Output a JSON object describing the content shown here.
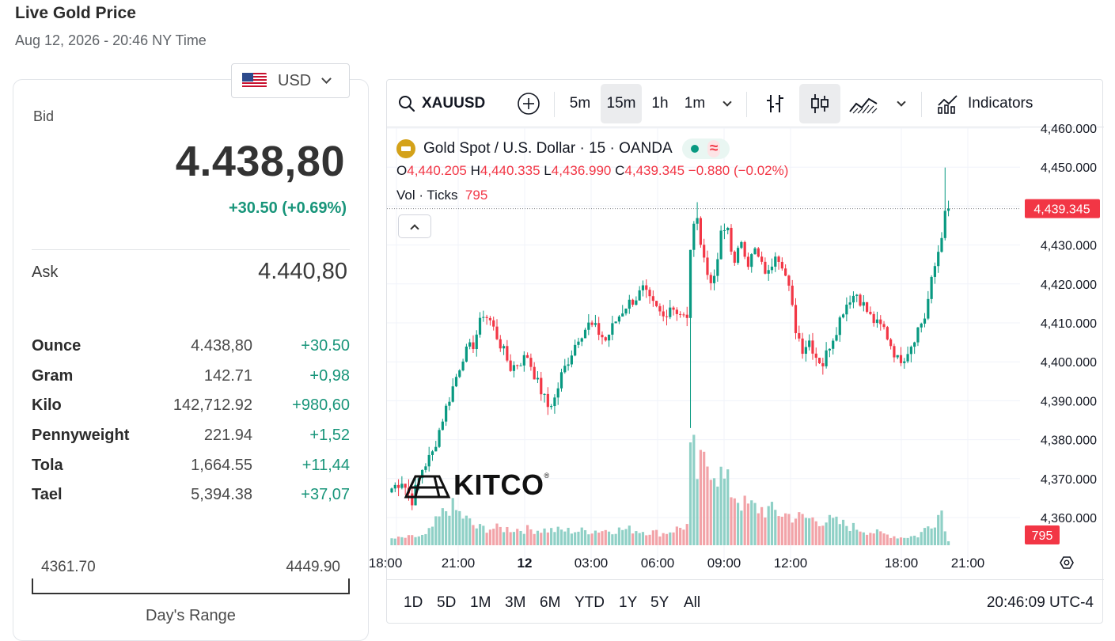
{
  "header": {
    "title": "Live Gold Price",
    "datetime": "Aug 12, 2026 - 20:46 NY Time"
  },
  "currency": {
    "selected": "USD",
    "flag_icon": "us-flag-icon"
  },
  "quote": {
    "bid_label": "Bid",
    "bid": "4.438,80",
    "change": "+30.50 (+0.69%)",
    "ask_label": "Ask",
    "ask": "4.440,80"
  },
  "units": [
    {
      "name": "Ounce",
      "price": "4.438,80",
      "change": "+30.50"
    },
    {
      "name": "Gram",
      "price": "142.71",
      "change": "+0,98"
    },
    {
      "name": "Kilo",
      "price": "142,712.92",
      "change": "+980,60"
    },
    {
      "name": "Pennyweight",
      "price": "221.94",
      "change": "+1,52"
    },
    {
      "name": "Tola",
      "price": "1,664.55",
      "change": "+11,44"
    },
    {
      "name": "Tael",
      "price": "5,394.38",
      "change": "+37,07"
    }
  ],
  "days_range": {
    "low": "4361.70",
    "high": "4449.90",
    "label": "Day's Range"
  },
  "toolbar": {
    "symbol": "XAUUSD",
    "intervals": [
      "5m",
      "15m",
      "1h",
      "1m"
    ],
    "active_interval": "15m",
    "indicators_label": "Indicators"
  },
  "legend": {
    "title": "Gold Spot",
    "slash": "/",
    "quote_name": "U.S. Dollar",
    "meta": "· 15 · OANDA",
    "o_label": "O",
    "o": "4,440.205",
    "h_label": "H",
    "h": "4,440.335",
    "l_label": "L",
    "l": "4,436.990",
    "c_label": "C",
    "c": "4,439.345",
    "change": "−0.880 (−0.02%)",
    "vol_label": "Vol · Ticks",
    "vol": "795"
  },
  "watermark": {
    "text": "KITCO",
    "reg": "®"
  },
  "bottom": {
    "ranges": [
      "1D",
      "5D",
      "1M",
      "3M",
      "6M",
      "YTD",
      "1Y",
      "5Y",
      "All"
    ],
    "time": "20:46:09 UTC-4"
  },
  "colors": {
    "up": "#089981",
    "down": "#f23645",
    "up_vol": "#8fd0c6",
    "down_vol": "#f2a3a8",
    "badge": "#f23645"
  },
  "chart_data": {
    "type": "candlestick",
    "price_axis": {
      "ticks": [
        "4,450.000",
        "4,440.000",
        "4,430.000",
        "4,420.000",
        "4,410.000",
        "4,400.000",
        "4,390.000",
        "4,380.000",
        "4,370.000",
        "4,360.000"
      ],
      "top_partial_tick": "4,460.000",
      "range": [
        4356,
        4460
      ]
    },
    "time_axis": {
      "ticks": [
        "18:00",
        "21:00",
        "12",
        "03:00",
        "06:00",
        "09:00",
        "12:00",
        "18:00",
        "21:00"
      ]
    },
    "last_price": "4,439.345",
    "last_volume": "795",
    "close_path": [
      [
        0,
        4367.5
      ],
      [
        3,
        4369.5
      ],
      [
        6,
        4364.5
      ],
      [
        9,
        4372.5
      ],
      [
        12,
        4376.5
      ],
      [
        15,
        4385.5
      ],
      [
        18,
        4393.5
      ],
      [
        21,
        4401.5
      ],
      [
        24,
        4404.5
      ],
      [
        27,
        4412.5
      ],
      [
        29,
        4410.5
      ],
      [
        32,
        4404.5
      ],
      [
        35,
        4398.5
      ],
      [
        37,
        4399.5
      ],
      [
        40,
        4401.5
      ],
      [
        43,
        4394.5
      ],
      [
        46,
        4388.5
      ],
      [
        48,
        4390.5
      ],
      [
        50,
        4396.5
      ],
      [
        53,
        4402.5
      ],
      [
        55,
        4406.5
      ],
      [
        58,
        4409.5
      ],
      [
        60,
        4408.5
      ],
      [
        63,
        4405.5
      ],
      [
        66,
        4410.5
      ],
      [
        69,
        4414.5
      ],
      [
        72,
        4416.5
      ],
      [
        74,
        4418.5
      ],
      [
        76,
        4415.5
      ],
      [
        78,
        4413.5
      ],
      [
        80,
        4411.5
      ],
      [
        82,
        4414.5
      ],
      [
        85,
        4412.5
      ],
      [
        87,
        4410.5
      ],
      [
        88,
        4429.5
      ],
      [
        90,
        4438.5
      ],
      [
        91,
        4430.5
      ],
      [
        93,
        4422.5
      ],
      [
        95,
        4420.5
      ],
      [
        97,
        4432.5
      ],
      [
        99,
        4434.5
      ],
      [
        101,
        4424.5
      ],
      [
        103,
        4431.5
      ],
      [
        105,
        4425.5
      ],
      [
        107,
        4428.5
      ],
      [
        109,
        4424.5
      ],
      [
        111,
        4422.5
      ],
      [
        113,
        4428.5
      ],
      [
        115,
        4425.5
      ],
      [
        117,
        4418.5
      ],
      [
        119,
        4408.5
      ],
      [
        121,
        4403.5
      ],
      [
        123,
        4405.5
      ],
      [
        125,
        4401.5
      ],
      [
        127,
        4399.5
      ],
      [
        129,
        4404.5
      ],
      [
        131,
        4408.5
      ],
      [
        133,
        4413.5
      ],
      [
        135,
        4416.5
      ],
      [
        137,
        4417.5
      ],
      [
        139,
        4414.5
      ],
      [
        141,
        4411.5
      ],
      [
        143,
        4409.5
      ],
      [
        145,
        4408.5
      ],
      [
        147,
        4404.5
      ],
      [
        149,
        4400.5
      ],
      [
        151,
        4401.5
      ],
      [
        153,
        4404.5
      ],
      [
        155,
        4408.5
      ],
      [
        157,
        4411.5
      ],
      [
        159,
        4420.5
      ],
      [
        161,
        4428.5
      ],
      [
        163,
        4437.5
      ],
      [
        164,
        4439.345
      ]
    ],
    "notable_wicks": [
      {
        "bar": 88,
        "low": 4383.0
      },
      {
        "bar": 90,
        "high": 4441.0
      },
      {
        "bar": 163,
        "high": 4449.9
      }
    ],
    "volume_profile": [
      [
        0,
        8
      ],
      [
        10,
        12
      ],
      [
        17,
        50
      ],
      [
        25,
        22
      ],
      [
        40,
        20
      ],
      [
        55,
        18
      ],
      [
        70,
        20
      ],
      [
        80,
        15
      ],
      [
        87,
        25
      ],
      [
        88,
        130
      ],
      [
        90,
        90
      ],
      [
        94,
        110
      ],
      [
        98,
        80
      ],
      [
        104,
        50
      ],
      [
        110,
        45
      ],
      [
        120,
        35
      ],
      [
        130,
        30
      ],
      [
        140,
        18
      ],
      [
        150,
        10
      ],
      [
        155,
        12
      ],
      [
        160,
        32
      ],
      [
        162,
        45
      ],
      [
        164,
        5
      ]
    ]
  }
}
